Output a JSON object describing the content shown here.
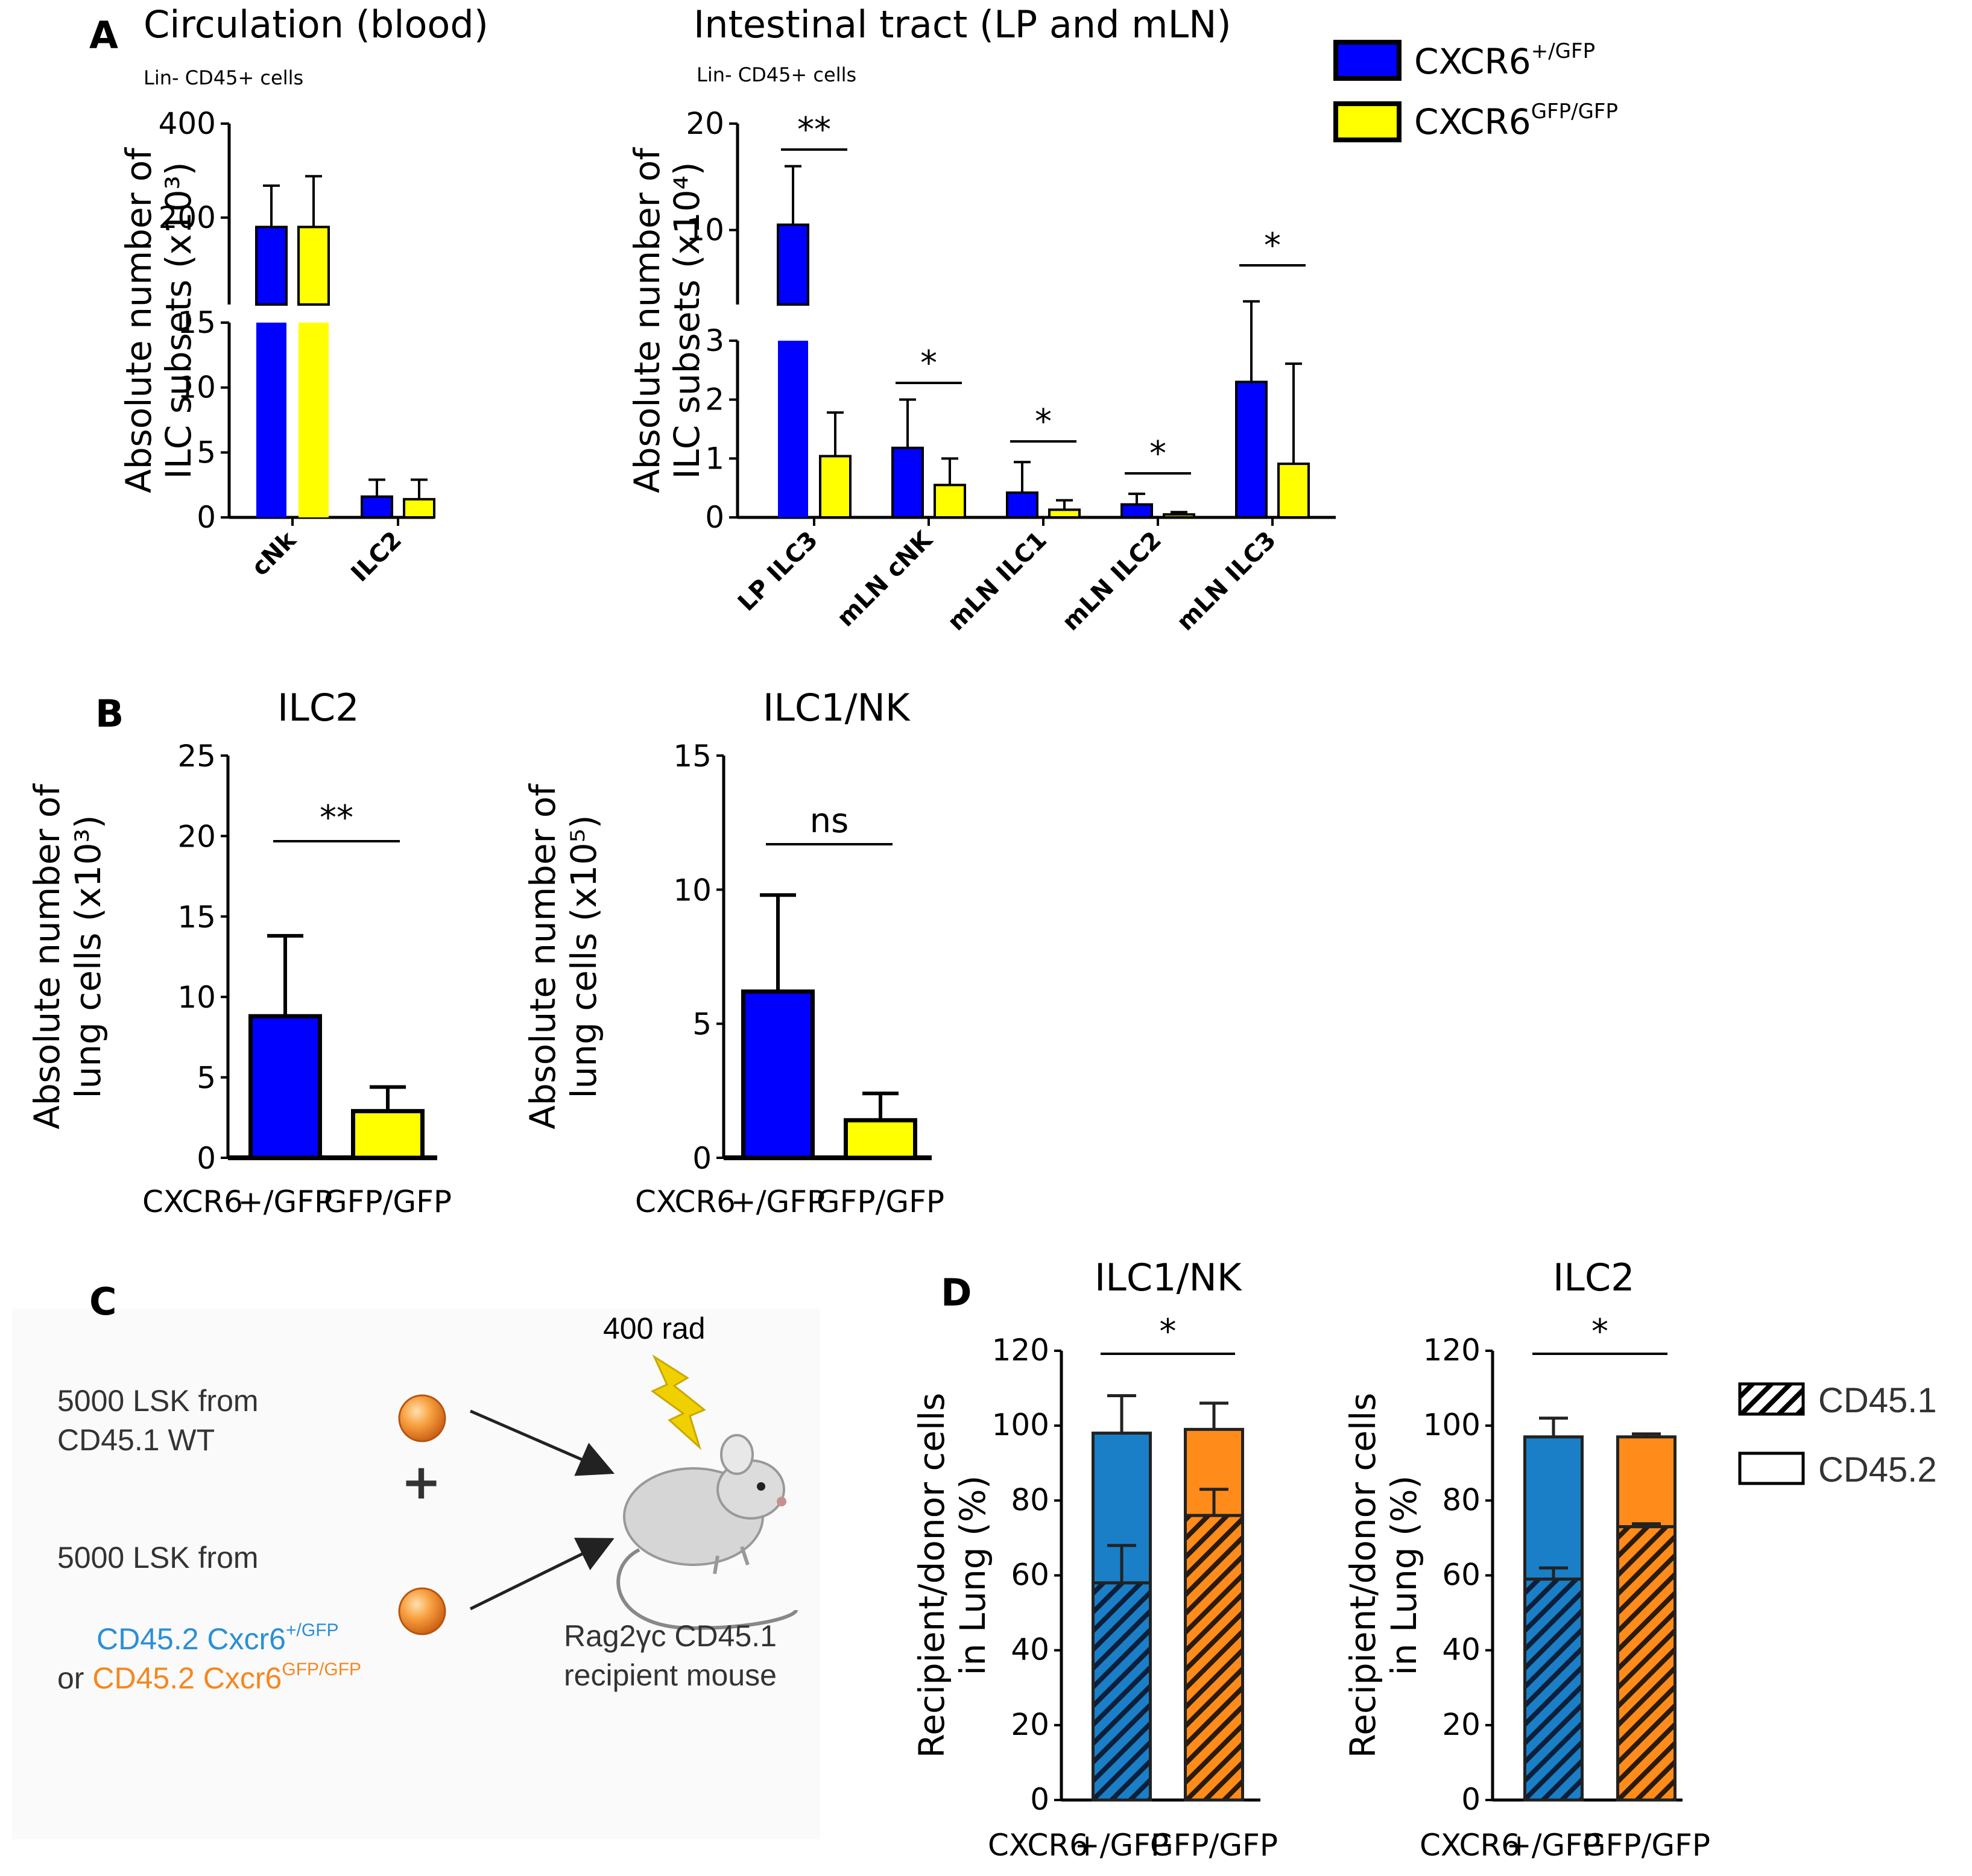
{
  "panels": {
    "A": {
      "label": "A",
      "title_left": "Circulation (blood)",
      "title_right": "Intestinal tract (LP and mLN)",
      "subtitle": "Lin- CD45+ cells",
      "legend": [
        {
          "label": "CXCR6",
          "sup": "+/GFP",
          "color": "#0000ff"
        },
        {
          "label": "CXCR6",
          "sup": "GFP/GFP",
          "color": "#ffff00"
        }
      ]
    },
    "B": {
      "label": "B",
      "title_left": "ILC2",
      "title_right": "ILC1/NK"
    },
    "C": {
      "label": "C",
      "radiation": "400 rad",
      "donor1_line1": "5000 LSK from",
      "donor1_line2": "CD45.1 WT",
      "plus": "+",
      "donor2_line1": "5000 LSK from",
      "donor2_line2a": "CD45.2 Cxcr6",
      "donor2_sup_a": "+/GFP",
      "donor2_or": "or ",
      "donor2_line2b": "CD45.2 Cxcr6",
      "donor2_sup_b": "GFP/GFP",
      "recipient_line1": "Rag2γc CD45.1",
      "recipient_line2": "recipient mouse"
    },
    "D": {
      "label": "D",
      "title_left": "ILC1/NK",
      "title_right": "ILC2",
      "legend": [
        "CD45.1",
        "CD45.2"
      ]
    }
  },
  "colors": {
    "het": "#0000ff",
    "ko": "#ffff00",
    "blue_d": "#1a7fc6",
    "orange_d": "#ff8c1a",
    "text_blue": "#2b8fd6",
    "text_orange": "#f5871f",
    "bolt": "#f0d000"
  },
  "chart_data": [
    {
      "id": "A-blood",
      "type": "bar",
      "title": "Circulation (blood)",
      "subtitle": "Lin- CD45+ cells",
      "ylabel_line1": "Absolute number of",
      "ylabel_line2": "ILC subsets (x10³)",
      "categories": [
        "cNk",
        "ILC2"
      ],
      "series": [
        {
          "name": "CXCR6 +/GFP",
          "values": [
            180,
            1.6
          ],
          "errors": [
            88,
            1.3
          ]
        },
        {
          "name": "CXCR6 GFP/GFP",
          "values": [
            180,
            1.4
          ],
          "errors": [
            108,
            1.5
          ]
        }
      ],
      "yaxis_lower": {
        "range": [
          0,
          15
        ],
        "ticks": [
          "0",
          "5",
          "10",
          "15"
        ]
      },
      "yaxis_upper": {
        "range": [
          15,
          400
        ],
        "ticks": [
          "200",
          "400"
        ]
      },
      "annotations": []
    },
    {
      "id": "A-intestine",
      "type": "bar",
      "title": "Intestinal tract (LP and mLN)",
      "subtitle": "Lin- CD45+ cells",
      "ylabel_line1": "Absolute number of",
      "ylabel_line2": "ILC subsets (x10⁴)",
      "categories": [
        "LP ILC3",
        "mLN cNK",
        "mLN ILC1",
        "mLN ILC2",
        "mLN ILC3"
      ],
      "series": [
        {
          "name": "CXCR6 +/GFP",
          "values": [
            10.5,
            1.18,
            0.42,
            0.22,
            2.3
          ],
          "errors": [
            5.5,
            0.82,
            0.52,
            0.18,
            1.0
          ]
        },
        {
          "name": "CXCR6 GFP/GFP",
          "values": [
            1.04,
            0.55,
            0.13,
            0.05,
            0.91
          ],
          "errors": [
            0.74,
            0.45,
            0.16,
            0.04,
            1.7
          ]
        }
      ],
      "yaxis_lower": {
        "range": [
          0,
          3
        ],
        "ticks": [
          "0",
          "1",
          "2",
          "3"
        ]
      },
      "yaxis_upper": {
        "range": [
          3,
          20
        ],
        "ticks": [
          "10",
          "20"
        ]
      },
      "annotations": [
        "**",
        "*",
        "*",
        "*",
        "*"
      ]
    },
    {
      "id": "B-ILC2",
      "type": "bar",
      "title": "ILC2",
      "ylabel_line1": "Absolute number of",
      "ylabel_line2": "lung cells (x10³)",
      "xprefix": "CXCR6",
      "categories": [
        "+/GFP",
        "GFP/GFP"
      ],
      "values": [
        8.8,
        2.9
      ],
      "errors": [
        5.0,
        1.5
      ],
      "ylim": [
        0,
        25
      ],
      "yticks": [
        "0",
        "5",
        "10",
        "15",
        "20",
        "25"
      ],
      "annotation": "**"
    },
    {
      "id": "B-ILC1NK",
      "type": "bar",
      "title": "ILC1/NK",
      "ylabel_line1": "Absolute number of",
      "ylabel_line2": "lung cells (x10⁵)",
      "xprefix": "CXCR6",
      "categories": [
        "+/GFP",
        "GFP/GFP"
      ],
      "values": [
        6.2,
        1.4
      ],
      "errors": [
        3.6,
        1.0
      ],
      "ylim": [
        0,
        15
      ],
      "yticks": [
        "0",
        "5",
        "10",
        "15"
      ],
      "annotation": "ns"
    },
    {
      "id": "D-ILC1NK",
      "type": "stacked-bar",
      "title": "ILC1/NK",
      "ylabel_line1": "Recipient/donor cells",
      "ylabel_line2": "in Lung (%)",
      "xprefix": "CXCR6",
      "categories": [
        "+/GFP",
        "GFP/GFP"
      ],
      "series": [
        {
          "name": "CD45.1",
          "values": [
            58,
            76
          ],
          "errors": [
            10,
            7
          ]
        },
        {
          "name": "CD45.2",
          "values": [
            40,
            23
          ],
          "errors": [
            10,
            7
          ]
        }
      ],
      "ylim": [
        0,
        120
      ],
      "yticks": [
        "0",
        "20",
        "40",
        "60",
        "80",
        "100",
        "120"
      ],
      "annotation": "*"
    },
    {
      "id": "D-ILC2",
      "type": "stacked-bar",
      "title": "ILC2",
      "ylabel_line1": "Recipient/donor cells",
      "ylabel_line2": "in Lung (%)",
      "xprefix": "CXCR6",
      "categories": [
        "+/GFP",
        "GFP/GFP"
      ],
      "series": [
        {
          "name": "CD45.1",
          "values": [
            59,
            73
          ],
          "errors": [
            3,
            0.8
          ]
        },
        {
          "name": "CD45.2",
          "values": [
            38,
            24
          ],
          "errors": [
            5,
            0.8
          ]
        }
      ],
      "ylim": [
        0,
        120
      ],
      "yticks": [
        "0",
        "20",
        "40",
        "60",
        "80",
        "100",
        "120"
      ],
      "annotation": "*"
    }
  ]
}
